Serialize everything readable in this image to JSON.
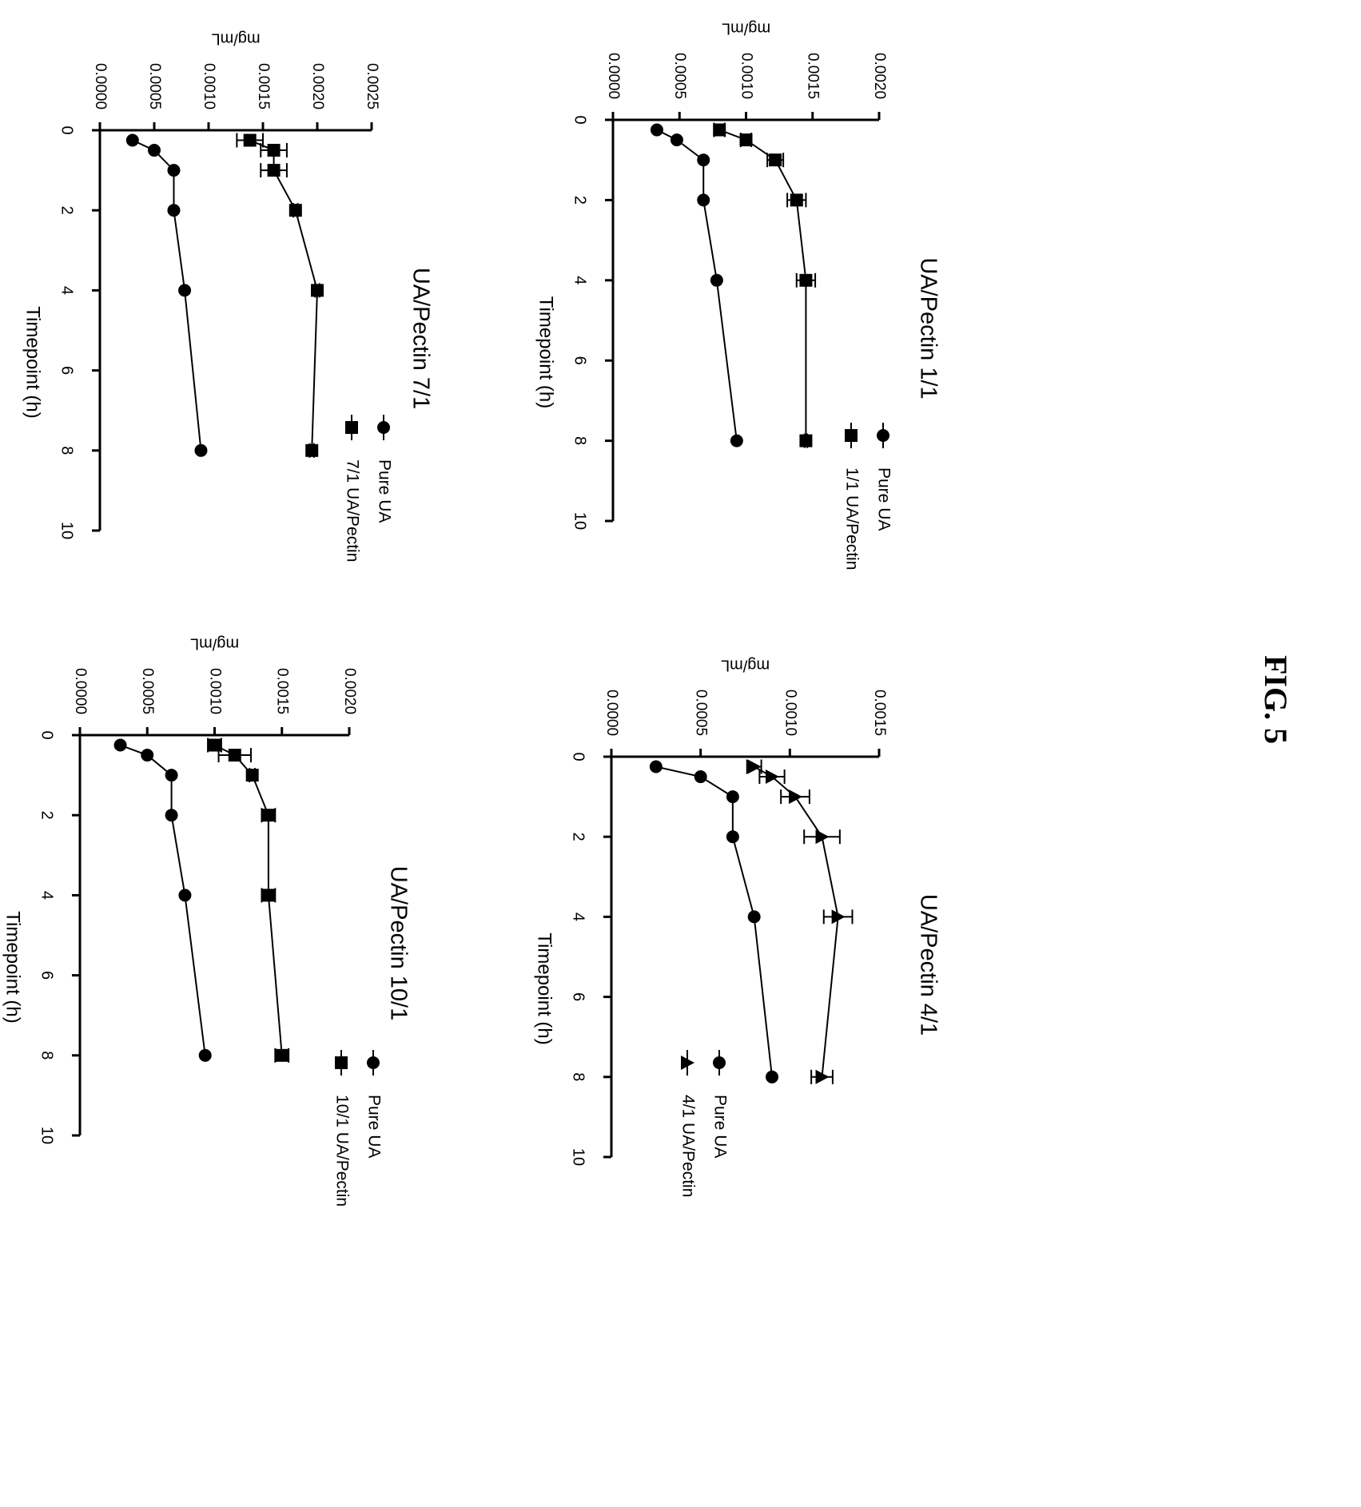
{
  "figure_label": "FIG. 5",
  "chart_data": [
    {
      "type": "line",
      "title": "UA/Pectin 1/1",
      "xlabel": "Timepoint (h)",
      "ylabel": "mg/mL",
      "xlim": [
        0,
        10
      ],
      "ylim": [
        0,
        0.002
      ],
      "x_ticks": [
        "0",
        "2",
        "4",
        "6",
        "8",
        "10"
      ],
      "y_ticks": [
        "0.0000",
        "0.0005",
        "0.0010",
        "0.0015",
        "0.0020"
      ],
      "legend_position": "right",
      "series": [
        {
          "name": "Pure UA",
          "marker": "circle",
          "x": [
            0.25,
            0.5,
            1,
            2,
            4,
            8
          ],
          "y": [
            0.00033,
            0.00048,
            0.00068,
            0.00068,
            0.00078,
            0.00093
          ],
          "err": [
            0,
            0,
            0,
            0,
            0,
            0
          ]
        },
        {
          "name": "1/1 UA/Pectin",
          "marker": "square",
          "x": [
            0.25,
            0.5,
            1,
            2,
            4,
            8
          ],
          "y": [
            0.0008,
            0.001,
            0.00122,
            0.00138,
            0.00145,
            0.00145
          ],
          "err": [
            4e-05,
            4e-05,
            6e-05,
            7e-05,
            7e-05,
            1e-05
          ]
        }
      ]
    },
    {
      "type": "line",
      "title": "UA/Pectin 4/1",
      "xlabel": "Timepoint (h)",
      "ylabel": "mg/mL",
      "xlim": [
        0,
        10
      ],
      "ylim": [
        0,
        0.0015
      ],
      "x_ticks": [
        "0",
        "2",
        "4",
        "6",
        "8",
        "10"
      ],
      "y_ticks": [
        "0.0000",
        "0.0005",
        "0.0010",
        "0.0015"
      ],
      "legend_position": "right",
      "series": [
        {
          "name": "Pure UA",
          "marker": "circle",
          "x": [
            0.25,
            0.5,
            1,
            2,
            4,
            8
          ],
          "y": [
            0.00025,
            0.0005,
            0.00068,
            0.00068,
            0.0008,
            0.0009
          ],
          "err": [
            0,
            0,
            0,
            0,
            0,
            0
          ]
        },
        {
          "name": "4/1 UA/Pectin",
          "marker": "triangle",
          "x": [
            0.25,
            0.5,
            1,
            2,
            4,
            8
          ],
          "y": [
            0.0008,
            0.0009,
            0.00103,
            0.00118,
            0.00127,
            0.00118
          ],
          "err": [
            4e-05,
            7e-05,
            8e-05,
            0.0001,
            8e-05,
            6e-05
          ]
        }
      ]
    },
    {
      "type": "line",
      "title": "UA/Pectin 7/1",
      "xlabel": "Timepoint (h)",
      "ylabel": "mg/mL",
      "xlim": [
        0,
        10
      ],
      "ylim": [
        0,
        0.0025
      ],
      "x_ticks": [
        "0",
        "2",
        "4",
        "6",
        "8",
        "10"
      ],
      "y_ticks": [
        "0.0000",
        "0.0005",
        "0.0010",
        "0.0015",
        "0.0020",
        "0.0025"
      ],
      "legend_position": "right",
      "series": [
        {
          "name": "Pure UA",
          "marker": "circle",
          "x": [
            0.25,
            0.5,
            1,
            2,
            4,
            8
          ],
          "y": [
            0.0003,
            0.0005,
            0.00068,
            0.00068,
            0.00078,
            0.00093
          ],
          "err": [
            0,
            0,
            0,
            0,
            0,
            0
          ]
        },
        {
          "name": "7/1 UA/Pectin",
          "marker": "square",
          "x": [
            0.25,
            0.5,
            1,
            2,
            4,
            8
          ],
          "y": [
            0.00138,
            0.0016,
            0.0016,
            0.0018,
            0.002,
            0.00195
          ],
          "err": [
            0.00012,
            0.00012,
            0.00012,
            2e-05,
            2e-05,
            2e-05
          ]
        }
      ]
    },
    {
      "type": "line",
      "title": "UA/Pectin 10/1",
      "xlabel": "Timepoint (h)",
      "ylabel": "mg/mL",
      "xlim": [
        0,
        10
      ],
      "ylim": [
        0,
        0.002
      ],
      "x_ticks": [
        "0",
        "2",
        "4",
        "6",
        "8",
        "10"
      ],
      "y_ticks": [
        "0.0000",
        "0.0005",
        "0.0010",
        "0.0015",
        "0.0020"
      ],
      "legend_position": "right",
      "series": [
        {
          "name": "Pure UA",
          "marker": "circle",
          "x": [
            0.25,
            0.5,
            1,
            2,
            4,
            8
          ],
          "y": [
            0.0003,
            0.0005,
            0.00068,
            0.00068,
            0.00078,
            0.00093
          ],
          "err": [
            0,
            0,
            0,
            0,
            0,
            0
          ]
        },
        {
          "name": "10/1 UA/Pectin",
          "marker": "square",
          "x": [
            0.25,
            0.5,
            1,
            2,
            4,
            8
          ],
          "y": [
            0.001,
            0.00115,
            0.00128,
            0.0014,
            0.0014,
            0.0015
          ],
          "err": [
            5e-05,
            0.00012,
            2e-05,
            5e-05,
            5e-05,
            5e-05
          ]
        }
      ]
    }
  ]
}
